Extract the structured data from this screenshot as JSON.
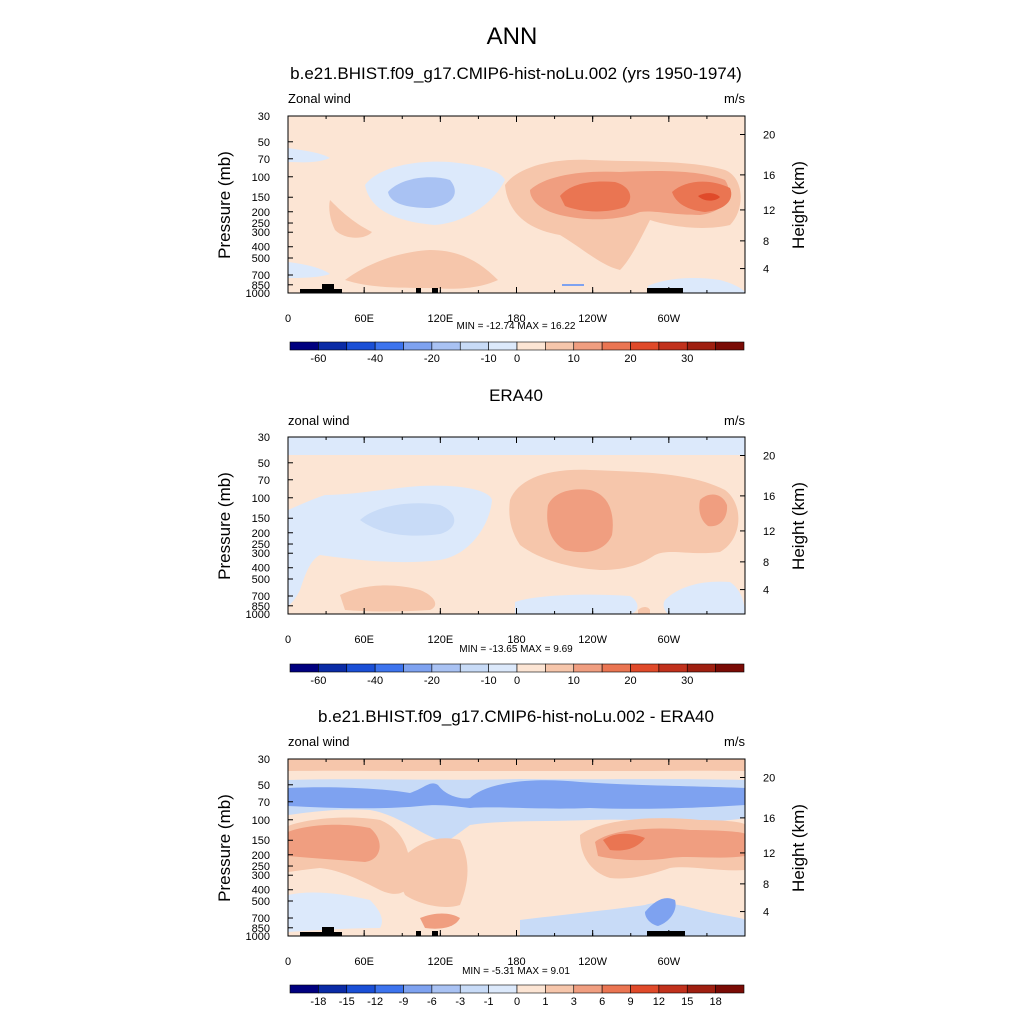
{
  "page_title": "ANN",
  "chart_data": [
    {
      "type": "heatmap",
      "title": "b.e21.BHIST.f09_g17.CMIP6-hist-noLu.002 (yrs 1950-1974)",
      "field_label": "Zonal wind",
      "units": "m/s",
      "ylabel": "Pressure (mb)",
      "y2label": "Height (km)",
      "x_ticks": [
        "0",
        "60E",
        "120E",
        "180",
        "120W",
        "60W"
      ],
      "y_ticks": [
        "30",
        "50",
        "70",
        "100",
        "150",
        "200",
        "250",
        "300",
        "400",
        "500",
        "700",
        "850",
        "1000"
      ],
      "y2_ticks": [
        "20",
        "16",
        "12",
        "8",
        "4"
      ],
      "stats": "MIN = -12.74  MAX =  16.22",
      "min": -12.74,
      "max": 16.22,
      "colorbar_labels": [
        "-60",
        "-40",
        "-20",
        "-10",
        "0",
        "10",
        "20",
        "30"
      ],
      "regions": [
        {
          "lon": 110,
          "p": 150,
          "value": -5,
          "level": "b3"
        },
        {
          "lon": 105,
          "p": 140,
          "value": -10,
          "level": "b4"
        },
        {
          "lon": 30,
          "p": 60,
          "value": -5,
          "level": "b3"
        },
        {
          "lon": 205,
          "p": 160,
          "value": 5,
          "level": "r1"
        },
        {
          "lon": 225,
          "p": 150,
          "value": 10,
          "level": "r3"
        },
        {
          "lon": 300,
          "p": 150,
          "value": 15,
          "level": "r4"
        },
        {
          "lon": 100,
          "p": 600,
          "value": 5,
          "level": "r1"
        }
      ]
    },
    {
      "type": "heatmap",
      "title": "ERA40",
      "field_label": "zonal wind",
      "units": "m/s",
      "ylabel": "Pressure (mb)",
      "y2label": "Height (km)",
      "x_ticks": [
        "0",
        "60E",
        "120E",
        "180",
        "120W",
        "60W"
      ],
      "y_ticks": [
        "30",
        "50",
        "70",
        "100",
        "150",
        "200",
        "250",
        "300",
        "400",
        "500",
        "700",
        "850",
        "1000"
      ],
      "y2_ticks": [
        "20",
        "16",
        "12",
        "8",
        "4"
      ],
      "stats": "MIN = -13.65  MAX =   9.69",
      "min": -13.65,
      "max": 9.69,
      "colorbar_labels": [
        "-60",
        "-40",
        "-20",
        "-10",
        "0",
        "10",
        "20",
        "30"
      ],
      "regions": [
        {
          "lon": 0,
          "p": 35,
          "value": -5,
          "level": "b3"
        },
        {
          "lon": 110,
          "p": 150,
          "value": -5,
          "level": "b3"
        },
        {
          "lon": 100,
          "p": 140,
          "value": -10,
          "level": "b4"
        },
        {
          "lon": 220,
          "p": 150,
          "value": 5,
          "level": "r1"
        },
        {
          "lon": 230,
          "p": 150,
          "value": 10,
          "level": "r2"
        },
        {
          "lon": 250,
          "p": 850,
          "value": -5,
          "level": "b3"
        }
      ]
    },
    {
      "type": "heatmap",
      "title": "b.e21.BHIST.f09_g17.CMIP6-hist-noLu.002 - ERA40",
      "field_label": "zonal wind",
      "units": "m/s",
      "ylabel": "Pressure (mb)",
      "y2label": "Height (km)",
      "x_ticks": [
        "0",
        "60E",
        "120E",
        "180",
        "120W",
        "60W"
      ],
      "y_ticks": [
        "30",
        "50",
        "70",
        "100",
        "150",
        "200",
        "250",
        "300",
        "400",
        "500",
        "700",
        "850",
        "1000"
      ],
      "y2_ticks": [
        "20",
        "16",
        "12",
        "8",
        "4"
      ],
      "stats": "MIN =  -5.31  MAX =   9.01",
      "min": -5.31,
      "max": 9.01,
      "colorbar_labels": [
        "-18",
        "-15",
        "-12",
        "-9",
        "-6",
        "-3",
        "-1",
        "0",
        "1",
        "3",
        "6",
        "9",
        "12",
        "15",
        "18"
      ],
      "regions": [
        {
          "lon": 180,
          "p": 60,
          "value": -3,
          "level": "b3"
        },
        {
          "lon": 60,
          "p": 60,
          "value": -6,
          "level": "b4"
        },
        {
          "lon": 40,
          "p": 180,
          "value": 3,
          "level": "r2"
        },
        {
          "lon": 300,
          "p": 150,
          "value": 6,
          "level": "r3"
        },
        {
          "lon": 280,
          "p": 700,
          "value": -3,
          "level": "b3"
        }
      ]
    }
  ],
  "colors": {
    "b8": "#00007f",
    "b7": "#0a2ba6",
    "b6": "#1a4fd6",
    "b5": "#3d74ee",
    "b4": "#7ea2f0",
    "b3": "#a9c2f3",
    "b2": "#c8dbf7",
    "b1": "#dce9fb",
    "r1": "#fce5d4",
    "r2": "#f6c6ab",
    "r3": "#f09e80",
    "r4": "#ea7552",
    "r5": "#e04a2a",
    "r6": "#c1311c",
    "r7": "#9f1f10",
    "r8": "#7a0b05",
    "land": "#000000"
  }
}
